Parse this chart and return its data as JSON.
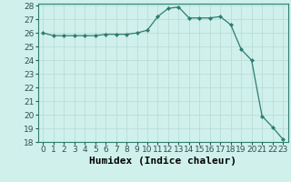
{
  "x": [
    0,
    1,
    2,
    3,
    4,
    5,
    6,
    7,
    8,
    9,
    10,
    11,
    12,
    13,
    14,
    15,
    16,
    17,
    18,
    19,
    20,
    21,
    22,
    23
  ],
  "y": [
    26.0,
    25.8,
    25.8,
    25.8,
    25.8,
    25.8,
    25.9,
    25.9,
    25.9,
    26.0,
    26.2,
    27.2,
    27.8,
    27.9,
    27.1,
    27.1,
    27.1,
    27.2,
    26.6,
    24.8,
    24.0,
    19.9,
    19.1,
    18.2
  ],
  "xlabel": "Humidex (Indice chaleur)",
  "ylim": [
    18,
    28
  ],
  "xlim": [
    -0.5,
    23.5
  ],
  "line_color": "#2e7d6e",
  "marker": "D",
  "marker_size": 2.0,
  "bg_color": "#cff0eb",
  "grid_color": "#b8d8d4",
  "tick_label_fontsize": 6.5,
  "xlabel_fontsize": 8,
  "yticks": [
    18,
    19,
    20,
    21,
    22,
    23,
    24,
    25,
    26,
    27,
    28
  ],
  "xticks": [
    0,
    1,
    2,
    3,
    4,
    5,
    6,
    7,
    8,
    9,
    10,
    11,
    12,
    13,
    14,
    15,
    16,
    17,
    18,
    19,
    20,
    21,
    22,
    23
  ]
}
